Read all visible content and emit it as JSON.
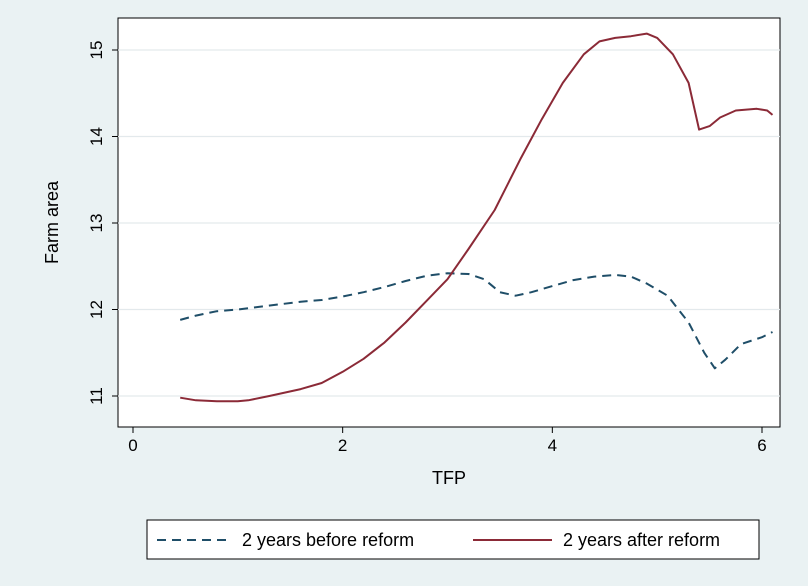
{
  "chart_data": {
    "type": "line",
    "title": "",
    "xlabel": "TFP",
    "ylabel": "Farm area",
    "xlim": [
      0,
      6.1
    ],
    "ylim": [
      11,
      15.2
    ],
    "xticks": [
      0,
      2,
      4,
      6
    ],
    "yticks": [
      11,
      12,
      13,
      14,
      15
    ],
    "grid": "horizontal",
    "legend_position": "bottom",
    "series": [
      {
        "name": "2 years before reform",
        "style": "dashed",
        "color": "#1f4e68",
        "x": [
          0.45,
          0.6,
          0.8,
          1.0,
          1.2,
          1.4,
          1.6,
          1.8,
          2.0,
          2.2,
          2.4,
          2.6,
          2.8,
          3.0,
          3.2,
          3.35,
          3.5,
          3.65,
          3.8,
          4.0,
          4.2,
          4.4,
          4.6,
          4.75,
          4.9,
          5.1,
          5.3,
          5.45,
          5.55,
          5.65,
          5.8,
          6.0,
          6.1
        ],
        "y": [
          11.88,
          11.93,
          11.98,
          12.0,
          12.03,
          12.06,
          12.09,
          12.11,
          12.15,
          12.2,
          12.26,
          12.33,
          12.39,
          12.42,
          12.41,
          12.35,
          12.2,
          12.16,
          12.2,
          12.27,
          12.34,
          12.38,
          12.4,
          12.38,
          12.3,
          12.16,
          11.85,
          11.5,
          11.32,
          11.42,
          11.6,
          11.68,
          11.74
        ]
      },
      {
        "name": "2 years after reform",
        "style": "solid",
        "color": "#8b2a37",
        "x": [
          0.45,
          0.6,
          0.8,
          1.0,
          1.1,
          1.3,
          1.6,
          1.8,
          2.0,
          2.2,
          2.4,
          2.6,
          2.8,
          3.0,
          3.2,
          3.45,
          3.7,
          3.9,
          4.1,
          4.3,
          4.45,
          4.6,
          4.75,
          4.9,
          5.0,
          5.15,
          5.3,
          5.4,
          5.5,
          5.6,
          5.75,
          5.95,
          6.05,
          6.1
        ],
        "y": [
          10.98,
          10.95,
          10.94,
          10.94,
          10.95,
          11.0,
          11.08,
          11.15,
          11.28,
          11.43,
          11.62,
          11.85,
          12.1,
          12.35,
          12.7,
          13.15,
          13.75,
          14.2,
          14.62,
          14.95,
          15.1,
          15.14,
          15.16,
          15.19,
          15.14,
          14.95,
          14.62,
          14.08,
          14.12,
          14.22,
          14.3,
          14.32,
          14.3,
          14.25
        ]
      }
    ]
  }
}
